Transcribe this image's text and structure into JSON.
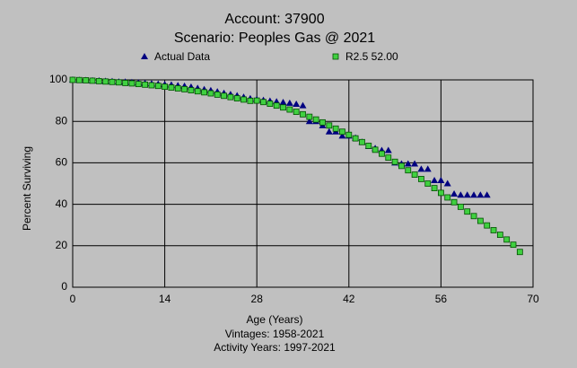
{
  "chart_data": {
    "type": "scatter",
    "title": "Account: 37900",
    "subtitle": "Scenario: Peoples Gas @ 2021",
    "xlabel": "Age (Years)",
    "ylabel": "Percent Surviving",
    "footnotes": [
      "Vintages: 1958-2021",
      "Activity Years: 1997-2021"
    ],
    "x": [
      0,
      1,
      2,
      3,
      4,
      5,
      6,
      7,
      8,
      9,
      10,
      11,
      12,
      13,
      14,
      15,
      16,
      17,
      18,
      19,
      20,
      21,
      22,
      23,
      24,
      25,
      26,
      27,
      28,
      29,
      30,
      31,
      32,
      33,
      34,
      35,
      36,
      37,
      38,
      39,
      40,
      41,
      42,
      43,
      44,
      45,
      46,
      47,
      48,
      49,
      50,
      51,
      52,
      53,
      54,
      55,
      56,
      57,
      58,
      59,
      60,
      61,
      62,
      63,
      64,
      65,
      66,
      67,
      68
    ],
    "series": [
      {
        "name": "Actual Data",
        "marker": "triangle",
        "color": "#000080",
        "values": [
          100,
          99.9,
          99.8,
          99.7,
          99.6,
          99.4,
          99.3,
          99.1,
          99,
          98.8,
          98.6,
          98.4,
          98.2,
          98,
          97.8,
          97.6,
          97.3,
          97,
          96.6,
          96,
          95.4,
          94.9,
          94.3,
          93.6,
          93,
          92.4,
          91.7,
          91,
          90.6,
          90.2,
          89.8,
          89.5,
          89.2,
          88.8,
          88.3,
          87.6,
          80,
          80,
          78,
          75,
          75,
          73,
          73,
          72,
          70,
          68,
          67,
          66,
          66,
          60,
          59.5,
          59.5,
          59.5,
          57,
          57,
          51.5,
          51.5,
          50,
          45,
          44.5,
          44.5,
          44.5,
          44.5,
          44.5,
          null,
          null,
          null,
          null,
          null
        ]
      },
      {
        "name": "R2.5 52.00",
        "marker": "square",
        "color": "#40d040",
        "values": [
          100,
          99.9,
          99.8,
          99.6,
          99.4,
          99.2,
          99,
          98.8,
          98.5,
          98.3,
          98,
          97.7,
          97.4,
          97.1,
          96.7,
          96.3,
          95.9,
          95.5,
          95,
          94.5,
          94,
          93.5,
          92.9,
          92.3,
          91.7,
          91.1,
          90.5,
          89.9,
          90,
          89.3,
          88.5,
          87.6,
          86.7,
          85.7,
          84.6,
          83.4,
          82.2,
          80.9,
          79.5,
          78,
          76.5,
          75,
          73.5,
          71.8,
          70,
          68.2,
          66.3,
          64.4,
          62.5,
          60.5,
          58.5,
          56.4,
          54.3,
          52.2,
          50,
          47.8,
          45.5,
          43.3,
          41,
          38.8,
          36.5,
          34.3,
          32,
          29.8,
          27.5,
          25.3,
          23,
          20.5,
          17
        ]
      }
    ],
    "xlim": [
      0,
      70
    ],
    "ylim": [
      0,
      100
    ],
    "xticks": [
      0,
      14,
      28,
      42,
      56,
      70
    ],
    "yticks": [
      0,
      20,
      40,
      60,
      80,
      100
    ],
    "grid": true
  }
}
